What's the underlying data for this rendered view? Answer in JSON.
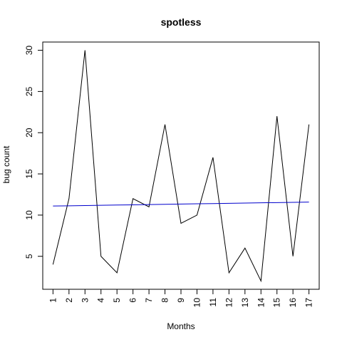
{
  "chart_data": {
    "type": "line",
    "title": "spotless",
    "xlabel": "Months",
    "ylabel": "bug count",
    "x": [
      1,
      2,
      3,
      4,
      5,
      6,
      7,
      8,
      9,
      10,
      11,
      12,
      13,
      14,
      15,
      16,
      17
    ],
    "xtick_labels": [
      "1",
      "2",
      "3",
      "4",
      "5",
      "6",
      "7",
      "8",
      "9",
      "10",
      "11",
      "12",
      "13",
      "14",
      "15",
      "16",
      "17"
    ],
    "yticks": [
      5,
      10,
      15,
      20,
      25,
      30
    ],
    "ytick_labels": [
      "5",
      "10",
      "15",
      "20",
      "25",
      "30"
    ],
    "xlim": [
      0.36,
      17.64
    ],
    "ylim": [
      1.0,
      31.0
    ],
    "grid": false,
    "series": [
      {
        "values": [
          4,
          12,
          30,
          5,
          3,
          12,
          11,
          21,
          9,
          10,
          17,
          3,
          6,
          2,
          22,
          5,
          21
        ],
        "color": "#000000"
      },
      {
        "values": [
          11.1,
          11.13,
          11.16,
          11.19,
          11.22,
          11.25,
          11.28,
          11.31,
          11.34,
          11.37,
          11.4,
          11.43,
          11.46,
          11.49,
          11.52,
          11.55,
          11.58
        ],
        "color": "#0000cc"
      }
    ]
  }
}
